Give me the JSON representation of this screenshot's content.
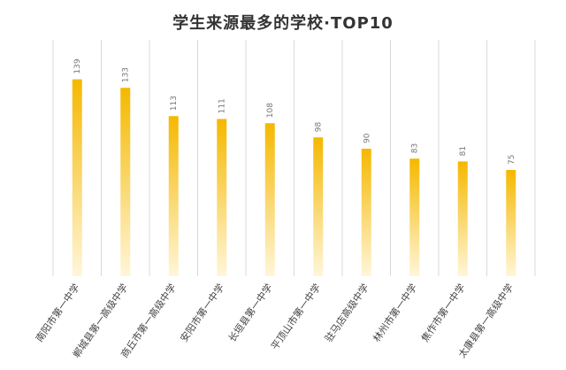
{
  "chart_data": {
    "type": "bar",
    "title": "学生来源最多的学校·TOP10",
    "categories": [
      "南阳市第一中学",
      "郸城县第一高级中学",
      "商丘市第一高级中学",
      "安阳市第一中学",
      "长垣县第一中学",
      "平顶山市第一中学",
      "驻马店高级中学",
      "林州市第一中学",
      "焦作市第一中学",
      "太康县第一高级中学"
    ],
    "values": [
      139,
      133,
      113,
      111,
      108,
      98,
      90,
      83,
      81,
      75
    ],
    "ylim": [
      0,
      160
    ],
    "grid": "vertical",
    "colors": {
      "bar_top": "#F5B800",
      "bar_bottom": "#FFF6D9",
      "grid": "#D9D9D9"
    }
  }
}
